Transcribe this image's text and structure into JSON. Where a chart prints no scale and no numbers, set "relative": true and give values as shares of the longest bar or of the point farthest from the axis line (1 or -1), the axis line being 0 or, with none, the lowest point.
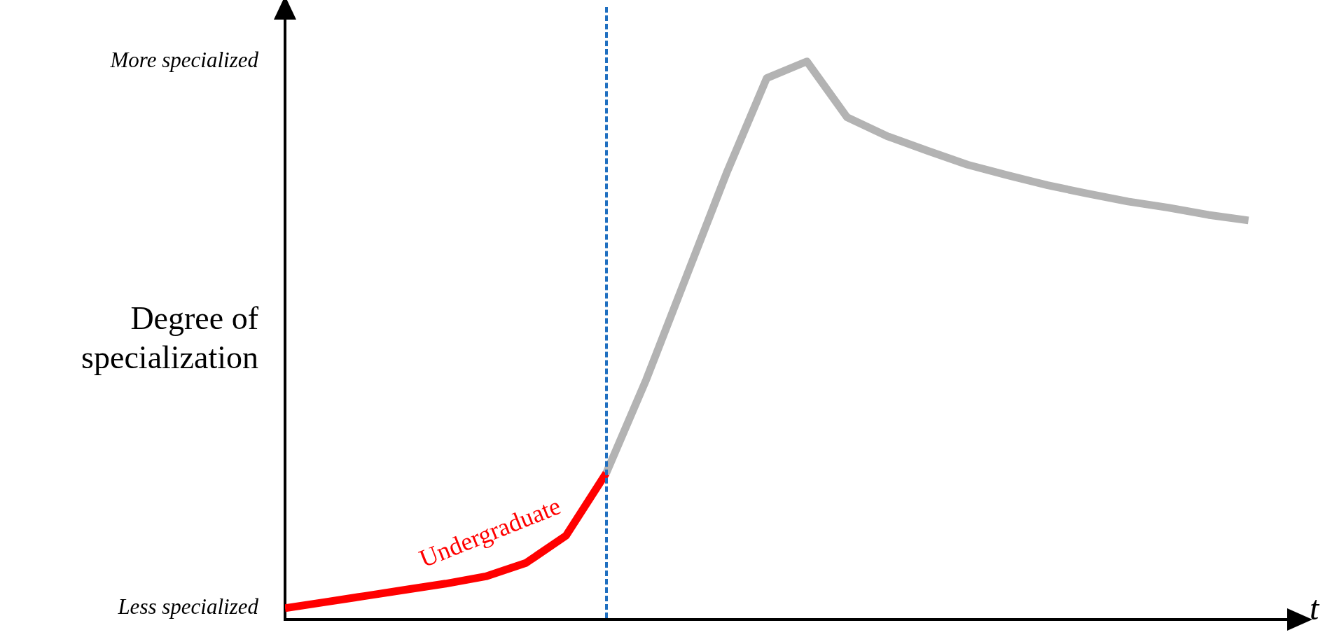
{
  "chart_data": {
    "type": "line",
    "relative": true,
    "ylabel": "Degree of specialization",
    "xlabel": "t",
    "categories": [
      null,
      null,
      null,
      null,
      null,
      null,
      null,
      null,
      null,
      null,
      null,
      null,
      null,
      null,
      null,
      null,
      null,
      null,
      null,
      null,
      null,
      null,
      null,
      null,
      null,
      null
    ],
    "legend": false,
    "marker": "none",
    "line_style": "solid",
    "annotations": [
      "More specialized",
      "Less specialized"
    ],
    "series": [
      {
        "name": "Undergraduate",
        "color": "#ff0000",
        "values": [
          0.02,
          0.031,
          0.042,
          0.053,
          0.064,
          0.077,
          0.101,
          0.15,
          0.262,
          null,
          null,
          null,
          null,
          null,
          null,
          null,
          null,
          null,
          null,
          null,
          null,
          null,
          null,
          null,
          null,
          null
        ]
      },
      {
        "color": "#b3b3b3",
        "values": [
          null,
          null,
          null,
          null,
          null,
          null,
          null,
          null,
          0.262,
          0.43,
          0.615,
          0.8,
          0.97,
          1.0,
          0.9,
          0.866,
          0.84,
          0.815,
          0.796,
          0.778,
          0.763,
          0.749,
          0.738,
          0.725,
          0.715,
          null
        ]
      }
    ]
  }
}
